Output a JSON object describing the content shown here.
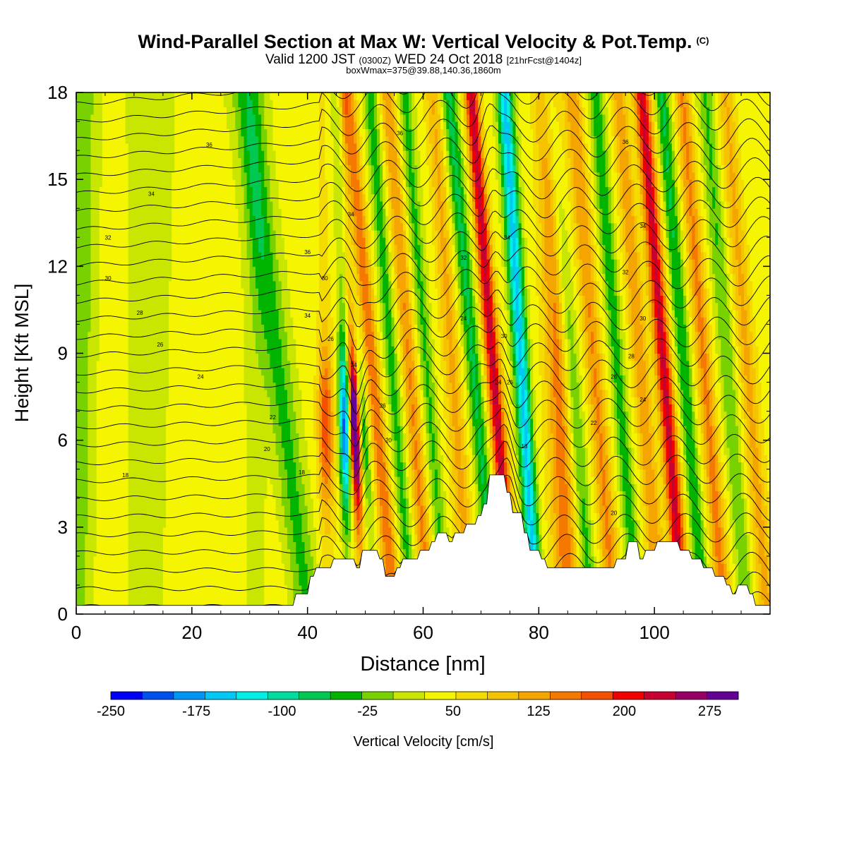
{
  "header": {
    "title": "Wind-Parallel Section at Max W: Vertical Velocity & Pot.Temp.",
    "title_mark": "(C)",
    "subtitle_main": "Valid 1200 JST",
    "subtitle_utc": "(0300Z)",
    "subtitle_date": "WED 24 Oct 2018",
    "subtitle_fcst": "[21hrFcst@1404z]",
    "subsubtitle": "boxWmax=375@39.88,140.36,1860m"
  },
  "colorbar": {
    "label": "Vertical Velocity [cm/s]",
    "tick_labels": [
      "-250",
      "-175",
      "-100",
      "-25",
      "50",
      "125",
      "200",
      "275"
    ],
    "min": -250,
    "max": 300,
    "step": 25,
    "colors": [
      "#0000f5",
      "#0050f0",
      "#0096f5",
      "#00c8f5",
      "#00f0e6",
      "#00dca0",
      "#00c850",
      "#00b400",
      "#78d200",
      "#c8e600",
      "#f5f500",
      "#f5dc00",
      "#f5c300",
      "#f5a500",
      "#f57800",
      "#f55000",
      "#f00000",
      "#c80032",
      "#960064",
      "#640096"
    ]
  },
  "chart_data": {
    "type": "heatmap",
    "xlabel": "Distance [nm]",
    "ylabel": "Height [Kft MSL]",
    "xlim": [
      0,
      120
    ],
    "ylim": [
      0,
      18
    ],
    "xticks": [
      "0",
      "20",
      "40",
      "60",
      "80",
      "100"
    ],
    "yticks": [
      "0",
      "3",
      "6",
      "9",
      "12",
      "15",
      "18"
    ],
    "x_tick_values": [
      0,
      20,
      40,
      60,
      80,
      100
    ],
    "y_tick_values": [
      0,
      3,
      6,
      9,
      12,
      15,
      18
    ],
    "field": "Vertical Velocity [cm/s]",
    "terrain_profile": [
      [
        0,
        0.3
      ],
      [
        37.5,
        0.3
      ],
      [
        38,
        0.7
      ],
      [
        40,
        0.7
      ],
      [
        40.5,
        1.3
      ],
      [
        41,
        1.3
      ],
      [
        41.5,
        1.6
      ],
      [
        44,
        1.6
      ],
      [
        44.5,
        1.9
      ],
      [
        48,
        1.9
      ],
      [
        48.5,
        1.6
      ],
      [
        49,
        1.6
      ],
      [
        49.5,
        2.2
      ],
      [
        52,
        2.2
      ],
      [
        52.5,
        1.9
      ],
      [
        53,
        1.9
      ],
      [
        53.5,
        1.3
      ],
      [
        55,
        1.3
      ],
      [
        55.5,
        1.6
      ],
      [
        56,
        1.6
      ],
      [
        56.5,
        1.9
      ],
      [
        59,
        1.9
      ],
      [
        59.5,
        2.2
      ],
      [
        61,
        2.2
      ],
      [
        61.5,
        2.5
      ],
      [
        62,
        2.5
      ],
      [
        62.5,
        2.8
      ],
      [
        64,
        2.8
      ],
      [
        64.5,
        2.5
      ],
      [
        65,
        2.5
      ],
      [
        65.5,
        2.8
      ],
      [
        67,
        2.8
      ],
      [
        67.5,
        3.1
      ],
      [
        69,
        3.1
      ],
      [
        69.5,
        3.4
      ],
      [
        70,
        3.4
      ],
      [
        70.5,
        3.8
      ],
      [
        71,
        3.8
      ],
      [
        71.5,
        4.8
      ],
      [
        74,
        4.8
      ],
      [
        74.5,
        4.2
      ],
      [
        75,
        4.2
      ],
      [
        75.5,
        3.5
      ],
      [
        77,
        3.5
      ],
      [
        77.5,
        2.8
      ],
      [
        78,
        2.8
      ],
      [
        78.5,
        2.2
      ],
      [
        80,
        2.2
      ],
      [
        80.5,
        1.9
      ],
      [
        81,
        1.9
      ],
      [
        81.5,
        1.6
      ],
      [
        93,
        1.6
      ],
      [
        93.5,
        1.9
      ],
      [
        95,
        1.9
      ],
      [
        95.5,
        2.5
      ],
      [
        97,
        2.5
      ],
      [
        97.5,
        1.9
      ],
      [
        98,
        1.9
      ],
      [
        98.5,
        2.2
      ],
      [
        100,
        2.2
      ],
      [
        100.5,
        2.5
      ],
      [
        104,
        2.5
      ],
      [
        104.5,
        2.2
      ],
      [
        106,
        2.2
      ],
      [
        106.5,
        1.9
      ],
      [
        108,
        1.9
      ],
      [
        108.5,
        1.6
      ],
      [
        110,
        1.6
      ],
      [
        110.5,
        1.3
      ],
      [
        112,
        1.3
      ],
      [
        112.5,
        1.0
      ],
      [
        113,
        1.0
      ],
      [
        113.5,
        0.7
      ],
      [
        114,
        0.7
      ],
      [
        114.5,
        1.0
      ],
      [
        116,
        1.0
      ],
      [
        116.5,
        0.7
      ],
      [
        117,
        0.7
      ],
      [
        117.5,
        0.3
      ],
      [
        120,
        0.3
      ]
    ],
    "contour_labels": [
      {
        "text": "36",
        "x": 23,
        "y": 16.2
      },
      {
        "text": "34",
        "x": 13,
        "y": 14.5
      },
      {
        "text": "32",
        "x": 5.5,
        "y": 13.0
      },
      {
        "text": "30",
        "x": 5.5,
        "y": 11.6
      },
      {
        "text": "28",
        "x": 11,
        "y": 10.4
      },
      {
        "text": "26",
        "x": 14.5,
        "y": 9.3
      },
      {
        "text": "24",
        "x": 21.5,
        "y": 8.2
      },
      {
        "text": "18",
        "x": 8.5,
        "y": 4.8
      },
      {
        "text": "22",
        "x": 34,
        "y": 6.8
      },
      {
        "text": "20",
        "x": 33,
        "y": 5.7
      },
      {
        "text": "18",
        "x": 39,
        "y": 4.9
      },
      {
        "text": "36",
        "x": 40,
        "y": 12.5
      },
      {
        "text": "30",
        "x": 43,
        "y": 11.6
      },
      {
        "text": "34",
        "x": 40,
        "y": 10.3
      },
      {
        "text": "26",
        "x": 44,
        "y": 9.5
      },
      {
        "text": "24",
        "x": 48,
        "y": 8.6
      },
      {
        "text": "26",
        "x": 53,
        "y": 7.2
      },
      {
        "text": "20",
        "x": 54,
        "y": 6.0
      },
      {
        "text": "34",
        "x": 47.5,
        "y": 13.8
      },
      {
        "text": "36",
        "x": 56,
        "y": 16.6
      },
      {
        "text": "32",
        "x": 67,
        "y": 12.3
      },
      {
        "text": "24",
        "x": 67,
        "y": 10.2
      },
      {
        "text": "34",
        "x": 74.5,
        "y": 13.0
      },
      {
        "text": "30",
        "x": 74,
        "y": 9.6
      },
      {
        "text": "24",
        "x": 73,
        "y": 8.0
      },
      {
        "text": "26",
        "x": 75,
        "y": 8.0
      },
      {
        "text": "18",
        "x": 77.5,
        "y": 5.8
      },
      {
        "text": "36",
        "x": 95,
        "y": 16.3
      },
      {
        "text": "34",
        "x": 98,
        "y": 13.4
      },
      {
        "text": "32",
        "x": 95,
        "y": 11.8
      },
      {
        "text": "30",
        "x": 98,
        "y": 10.2
      },
      {
        "text": "28",
        "x": 96,
        "y": 8.9
      },
      {
        "text": "26",
        "x": 93,
        "y": 8.2
      },
      {
        "text": "24",
        "x": 98,
        "y": 7.4
      },
      {
        "text": "22",
        "x": 89.5,
        "y": 6.6
      },
      {
        "text": "20",
        "x": 93,
        "y": 3.5
      }
    ]
  }
}
